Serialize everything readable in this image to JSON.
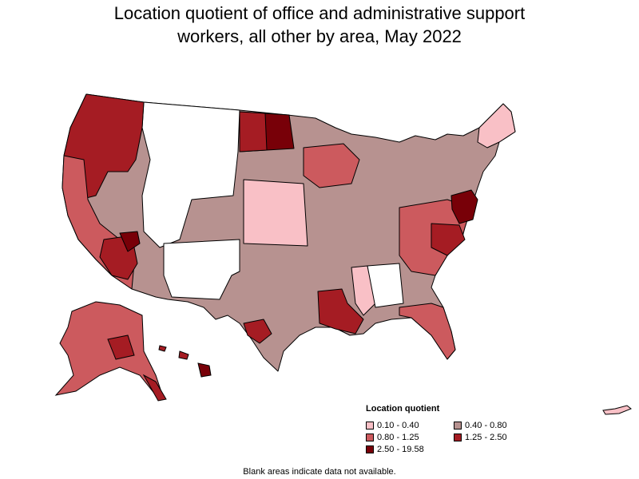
{
  "title": {
    "line1": "Location quotient of office and administrative support",
    "line2": "workers, all other by area, May 2022"
  },
  "legend": {
    "title": "Location quotient",
    "items": [
      {
        "key": "c1",
        "label": "0.10 - 0.40",
        "color": "#f9c0c6"
      },
      {
        "key": "c2",
        "label": "0.40 - 0.80",
        "color": "#b79290"
      },
      {
        "key": "c3",
        "label": "0.80 - 1.25",
        "color": "#cc5a5e"
      },
      {
        "key": "c4",
        "label": "1.25 - 2.50",
        "color": "#a51c23"
      },
      {
        "key": "c5",
        "label": "2.50 - 19.58",
        "color": "#780008"
      }
    ]
  },
  "footnote": "Blank areas indicate data not available.",
  "colors": {
    "blank": "#ffffff",
    "border": "#000000"
  }
}
